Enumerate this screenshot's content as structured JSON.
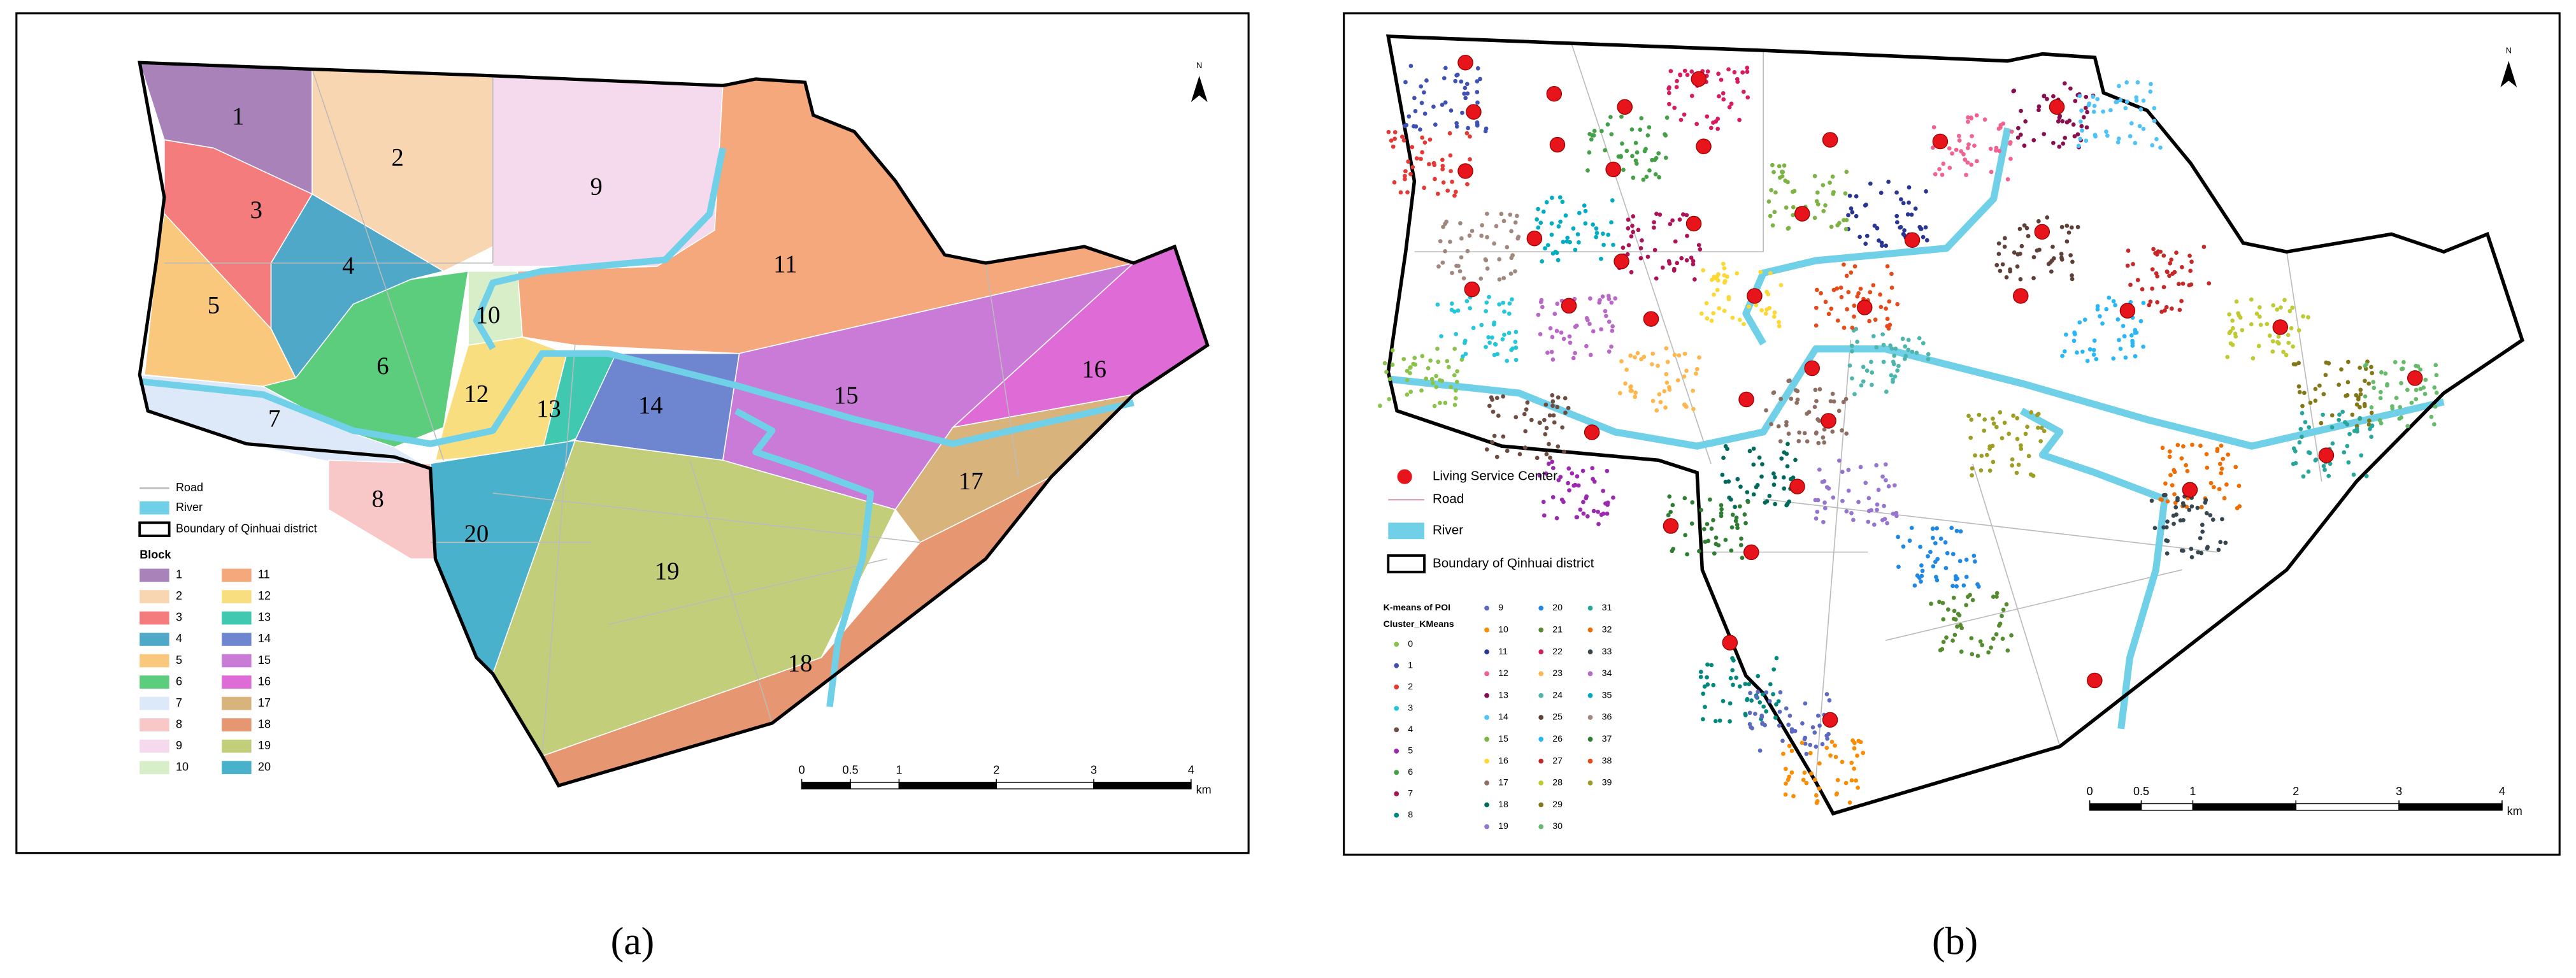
{
  "panel_a": {
    "caption": "(a)",
    "north": "N",
    "legend": {
      "road": "Road",
      "river": "River",
      "boundary": "Boundary of Qinhuai district",
      "block_title": "Block"
    },
    "blocks": [
      {
        "label": "1",
        "color": "#a882b8"
      },
      {
        "label": "2",
        "color": "#f9d6b2"
      },
      {
        "label": "3",
        "color": "#f47c7c"
      },
      {
        "label": "4",
        "color": "#4fa8c8"
      },
      {
        "label": "5",
        "color": "#f9c87c"
      },
      {
        "label": "6",
        "color": "#5ccd7c"
      },
      {
        "label": "7",
        "color": "#dde9f8"
      },
      {
        "label": "8",
        "color": "#f8c8c8"
      },
      {
        "label": "9",
        "color": "#f5d9ec"
      },
      {
        "label": "10",
        "color": "#d8eec8"
      },
      {
        "label": "11",
        "color": "#f4a87b"
      },
      {
        "label": "12",
        "color": "#f9de80"
      },
      {
        "label": "13",
        "color": "#40c9b0"
      },
      {
        "label": "14",
        "color": "#6d86cf"
      },
      {
        "label": "15",
        "color": "#c97bd7"
      },
      {
        "label": "16",
        "color": "#df6bd7"
      },
      {
        "label": "17",
        "color": "#d9b37c"
      },
      {
        "label": "18",
        "color": "#e69771"
      },
      {
        "label": "19",
        "color": "#c3ce7b"
      },
      {
        "label": "20",
        "color": "#4ab1cc"
      }
    ],
    "scale": {
      "ticks": [
        0,
        0.5,
        1,
        2,
        3,
        4
      ],
      "unit": "km"
    }
  },
  "panel_b": {
    "caption": "(b)",
    "north": "N",
    "legend": {
      "center": "Living Service Center",
      "road": "Road",
      "river": "River",
      "boundary": "Boundary of Qinhuai district"
    },
    "cluster_title": "K-means of POI",
    "cluster_field": "Cluster_KMeans",
    "clusters": [
      {
        "label": "0",
        "color": "#8bc34a"
      },
      {
        "label": "1",
        "color": "#3f51b5"
      },
      {
        "label": "2",
        "color": "#e53935"
      },
      {
        "label": "3",
        "color": "#26c6da"
      },
      {
        "label": "4",
        "color": "#6d4c41"
      },
      {
        "label": "5",
        "color": "#9c27b0"
      },
      {
        "label": "6",
        "color": "#43a047"
      },
      {
        "label": "7",
        "color": "#ad1457"
      },
      {
        "label": "8",
        "color": "#00897b"
      },
      {
        "label": "9",
        "color": "#5c6bc0"
      },
      {
        "label": "10",
        "color": "#fb8c00"
      },
      {
        "label": "11",
        "color": "#283593"
      },
      {
        "label": "12",
        "color": "#f06292"
      },
      {
        "label": "13",
        "color": "#880e4f"
      },
      {
        "label": "14",
        "color": "#4fc3f7"
      },
      {
        "label": "15",
        "color": "#7cb342"
      },
      {
        "label": "16",
        "color": "#fdd835"
      },
      {
        "label": "17",
        "color": "#8d6e63"
      },
      {
        "label": "18",
        "color": "#00695c"
      },
      {
        "label": "19",
        "color": "#9575cd"
      },
      {
        "label": "20",
        "color": "#1e88e5"
      },
      {
        "label": "21",
        "color": "#558b2f"
      },
      {
        "label": "22",
        "color": "#d81b60"
      },
      {
        "label": "23",
        "color": "#ffb74d"
      },
      {
        "label": "24",
        "color": "#4db6ac"
      },
      {
        "label": "25",
        "color": "#5d4037"
      },
      {
        "label": "26",
        "color": "#29b6f6"
      },
      {
        "label": "27",
        "color": "#c62828"
      },
      {
        "label": "28",
        "color": "#c0ca33"
      },
      {
        "label": "29",
        "color": "#827717"
      },
      {
        "label": "30",
        "color": "#66bb6a"
      },
      {
        "label": "31",
        "color": "#26a69a"
      },
      {
        "label": "32",
        "color": "#ef6c00"
      },
      {
        "label": "33",
        "color": "#37474f"
      },
      {
        "label": "34",
        "color": "#ba68c8"
      },
      {
        "label": "35",
        "color": "#00acc1"
      },
      {
        "label": "36",
        "color": "#a1887f"
      },
      {
        "label": "37",
        "color": "#2e7d32"
      },
      {
        "label": "38",
        "color": "#e64a19"
      },
      {
        "label": "39",
        "color": "#9e9d24"
      }
    ],
    "scale": {
      "ticks": [
        0,
        0.5,
        1,
        2,
        3,
        4
      ],
      "unit": "km"
    }
  }
}
